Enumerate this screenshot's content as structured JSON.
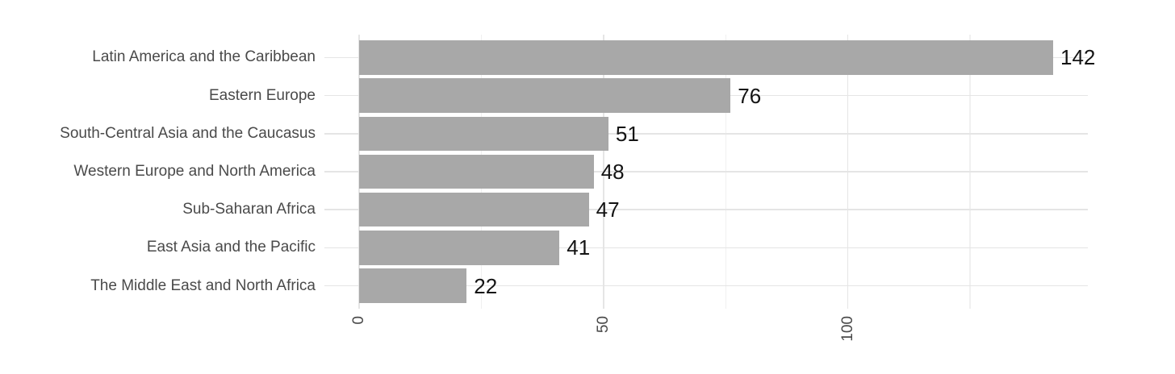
{
  "chart_data": {
    "type": "bar",
    "orientation": "horizontal",
    "title": "",
    "xlabel": "",
    "ylabel": "",
    "categories": [
      "Latin America and the Caribbean",
      "Eastern Europe",
      "South-Central Asia and the Caucasus",
      "Western Europe and North America",
      "Sub-Saharan Africa",
      "East Asia and the Pacific",
      "The Middle East and North Africa"
    ],
    "values": [
      142,
      76,
      51,
      48,
      47,
      41,
      22
    ],
    "bar_value_labels": [
      "142",
      "76",
      "51",
      "48",
      "47",
      "41",
      "22"
    ],
    "xlim": [
      -7.1,
      149.1
    ],
    "x_ticks_major": [
      0,
      50,
      100
    ],
    "x_tick_labels": [
      "0",
      "50",
      "100"
    ],
    "x_ticks_minor": [
      25,
      75,
      125
    ],
    "x_tick_label_rotation_deg": 90,
    "grid": "on",
    "legend": "none",
    "sort_order": "descending",
    "colors": {
      "bar_fill": "#a8a8a8",
      "grid_major": "#e5e5e5",
      "grid_minor": "#f0f0f0",
      "axis_text": "#4a4a4a",
      "value_text": "#141414",
      "background": "#ffffff"
    }
  }
}
